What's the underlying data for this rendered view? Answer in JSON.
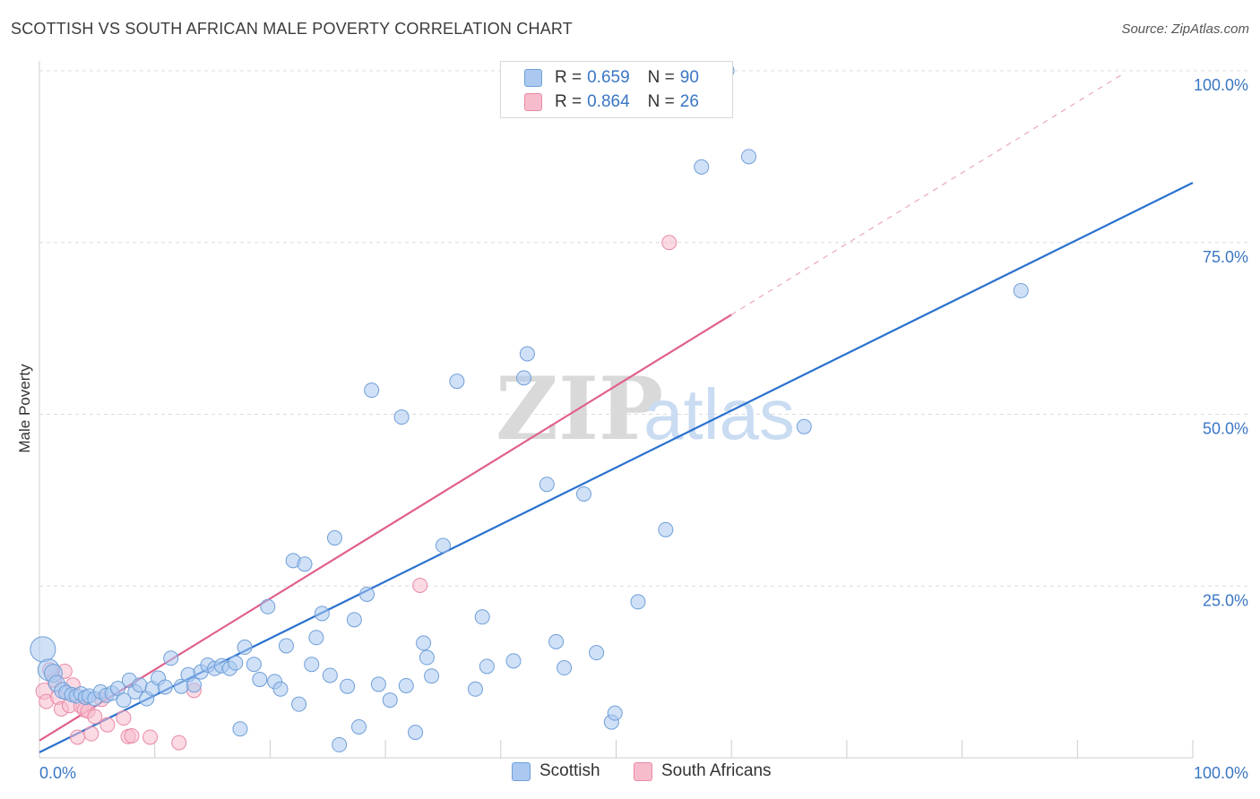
{
  "title": "SCOTTISH VS SOUTH AFRICAN MALE POVERTY CORRELATION CHART",
  "source": "Source: ZipAtlas.com",
  "watermark": {
    "zip": "ZIP",
    "atlas": "atlas"
  },
  "legend": {
    "r_label": "R = ",
    "n_label": "N = ",
    "rows": [
      {
        "r": "0.659",
        "n": "90",
        "color": "#aac8f0",
        "border": "#6f9fd8"
      },
      {
        "r": "0.864",
        "n": "26",
        "color": "#f7bccc",
        "border": "#e88aa6"
      }
    ]
  },
  "bottom_legend": {
    "scottish": "Scottish",
    "south_africans": "South Africans"
  },
  "colors": {
    "scottish_fill": "#aac8f0",
    "scottish_stroke": "#6f9fd8",
    "scottish_line": "#2b72cf",
    "sa_fill": "#f7bccc",
    "sa_stroke": "#e88aa6",
    "sa_line": "#e0608a",
    "tick_color": "#3a76c4",
    "grid": "#dcdcdc"
  },
  "chart_data": {
    "type": "scatter",
    "title": "SCOTTISH VS SOUTH AFRICAN MALE POVERTY CORRELATION CHART",
    "xlabel": "",
    "ylabel": "Male Poverty",
    "xlim": [
      0,
      100
    ],
    "ylim": [
      0,
      100
    ],
    "x_tick_labels": [
      "0.0%",
      "100.0%"
    ],
    "y_ticks": [
      25,
      50,
      75,
      100
    ],
    "y_tick_labels": [
      "25.0%",
      "50.0%",
      "75.0%",
      "100.0%"
    ],
    "grid": true,
    "series": [
      {
        "name": "Scottish",
        "r": 0.659,
        "n": 90,
        "points": [
          [
            0.3,
            15.8,
            14
          ],
          [
            0.8,
            12.8,
            12
          ],
          [
            1.2,
            12.3,
            10
          ],
          [
            1.5,
            10.8,
            9
          ],
          [
            2.0,
            9.8,
            9
          ],
          [
            2.3,
            9.5,
            8
          ],
          [
            2.8,
            9.2,
            8
          ],
          [
            3.2,
            9.0,
            8
          ],
          [
            3.6,
            9.3,
            8
          ],
          [
            4.0,
            8.8,
            8
          ],
          [
            4.3,
            9.0,
            8
          ],
          [
            4.8,
            8.6,
            8
          ],
          [
            5.3,
            9.6,
            8
          ],
          [
            5.8,
            9.1,
            8
          ],
          [
            6.3,
            9.4,
            8
          ],
          [
            6.8,
            10.1,
            8
          ],
          [
            7.3,
            8.4,
            8
          ],
          [
            7.8,
            11.3,
            8
          ],
          [
            8.3,
            9.6,
            8
          ],
          [
            8.7,
            10.6,
            8
          ],
          [
            9.3,
            8.6,
            8
          ],
          [
            9.8,
            10.1,
            8
          ],
          [
            10.3,
            11.6,
            8
          ],
          [
            10.9,
            10.3,
            8
          ],
          [
            11.4,
            14.5,
            8
          ],
          [
            12.3,
            10.4,
            8
          ],
          [
            12.9,
            12.1,
            8
          ],
          [
            13.4,
            10.6,
            8
          ],
          [
            14.0,
            12.5,
            8
          ],
          [
            14.6,
            13.5,
            8
          ],
          [
            15.2,
            13.0,
            8
          ],
          [
            15.8,
            13.4,
            8
          ],
          [
            16.5,
            13.0,
            8
          ],
          [
            17.0,
            13.8,
            8
          ],
          [
            17.4,
            4.2,
            8
          ],
          [
            17.8,
            16.1,
            8
          ],
          [
            18.6,
            13.6,
            8
          ],
          [
            19.1,
            11.4,
            8
          ],
          [
            19.8,
            22.0,
            8
          ],
          [
            20.4,
            11.1,
            8
          ],
          [
            20.9,
            10.0,
            8
          ],
          [
            21.4,
            16.3,
            8
          ],
          [
            22.0,
            28.7,
            8
          ],
          [
            22.5,
            7.8,
            8
          ],
          [
            23.0,
            28.2,
            8
          ],
          [
            23.6,
            13.6,
            8
          ],
          [
            24.0,
            17.5,
            8
          ],
          [
            24.5,
            21.0,
            8
          ],
          [
            25.2,
            12.0,
            8
          ],
          [
            25.6,
            32.0,
            8
          ],
          [
            26.0,
            1.9,
            8
          ],
          [
            26.7,
            10.4,
            8
          ],
          [
            27.3,
            20.1,
            8
          ],
          [
            27.7,
            4.5,
            8
          ],
          [
            28.4,
            23.8,
            8
          ],
          [
            28.8,
            53.5,
            8
          ],
          [
            29.4,
            10.7,
            8
          ],
          [
            30.4,
            8.4,
            8
          ],
          [
            31.4,
            49.6,
            8
          ],
          [
            31.8,
            10.5,
            8
          ],
          [
            32.6,
            3.7,
            8
          ],
          [
            33.3,
            16.7,
            8
          ],
          [
            33.6,
            14.6,
            8
          ],
          [
            34.0,
            11.9,
            8
          ],
          [
            35.0,
            30.9,
            8
          ],
          [
            36.2,
            54.8,
            8
          ],
          [
            37.8,
            10.0,
            8
          ],
          [
            38.4,
            20.5,
            8
          ],
          [
            38.8,
            13.3,
            8
          ],
          [
            41.1,
            14.1,
            8
          ],
          [
            42.0,
            55.3,
            8
          ],
          [
            42.3,
            58.8,
            8
          ],
          [
            44.0,
            39.8,
            8
          ],
          [
            44.8,
            16.9,
            8
          ],
          [
            45.5,
            13.1,
            8
          ],
          [
            47.2,
            38.4,
            8
          ],
          [
            48.3,
            15.3,
            8
          ],
          [
            49.6,
            5.2,
            8
          ],
          [
            49.9,
            6.5,
            8
          ],
          [
            51.9,
            22.7,
            8
          ],
          [
            54.3,
            33.2,
            8
          ],
          [
            57.4,
            86.0,
            8
          ],
          [
            59.6,
            100.0,
            8
          ],
          [
            61.5,
            87.5,
            8
          ],
          [
            66.3,
            48.2,
            8
          ],
          [
            85.1,
            68.0,
            8
          ]
        ],
        "trend": {
          "x0": 0,
          "y0": 0.8,
          "x1": 100,
          "y1": 83.7
        }
      },
      {
        "name": "South Africans",
        "r": 0.864,
        "n": 26,
        "points": [
          [
            0.4,
            9.7,
            9
          ],
          [
            0.6,
            8.2,
            8
          ],
          [
            0.9,
            12.8,
            8
          ],
          [
            1.3,
            11.3,
            8
          ],
          [
            1.6,
            8.8,
            8
          ],
          [
            1.9,
            7.1,
            8
          ],
          [
            2.2,
            12.6,
            8
          ],
          [
            2.6,
            7.6,
            8
          ],
          [
            2.9,
            10.6,
            8
          ],
          [
            3.3,
            3.0,
            8
          ],
          [
            3.6,
            7.5,
            8
          ],
          [
            3.9,
            7.0,
            8
          ],
          [
            4.2,
            6.8,
            8
          ],
          [
            4.5,
            3.5,
            8
          ],
          [
            4.8,
            6.0,
            8
          ],
          [
            5.4,
            8.5,
            8
          ],
          [
            5.9,
            4.8,
            8
          ],
          [
            7.3,
            5.8,
            8
          ],
          [
            7.7,
            3.1,
            8
          ],
          [
            8.0,
            3.2,
            8
          ],
          [
            9.6,
            3.0,
            8
          ],
          [
            12.1,
            2.2,
            8
          ],
          [
            13.4,
            9.8,
            8
          ],
          [
            33.0,
            25.1,
            8
          ],
          [
            54.6,
            75.0,
            8
          ]
        ],
        "trend": {
          "x0": 0,
          "y0": 2.5,
          "x1": 60,
          "y1": 64.5
        },
        "trend_dashed": {
          "x0": 60,
          "y0": 64.5,
          "x1": 94,
          "y1": 99.6
        }
      }
    ]
  }
}
